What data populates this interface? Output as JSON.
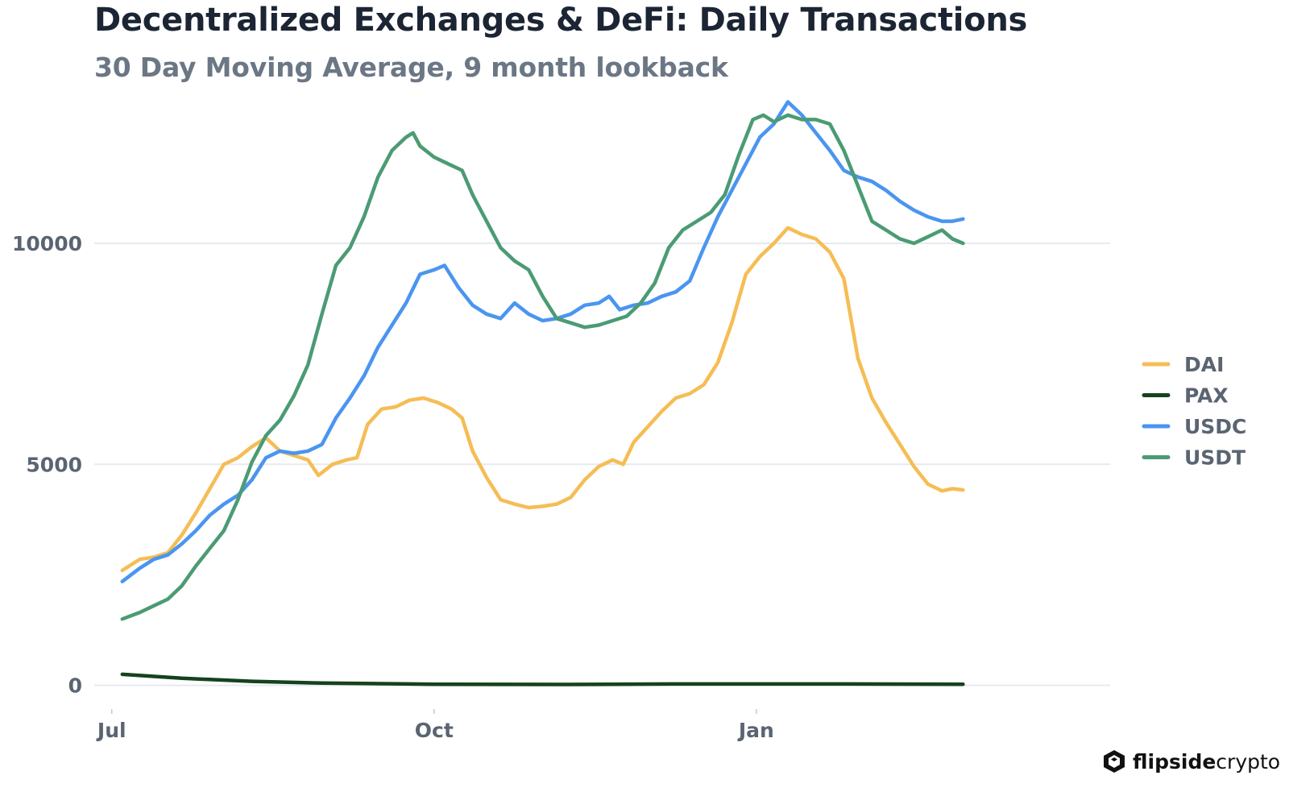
{
  "header": {
    "title": "Decentralized Exchanges & DeFi: Daily Transactions",
    "subtitle": "30 Day Moving Average, 9 month lookback"
  },
  "brand": {
    "name_bold": "flipside",
    "name_light": "crypto"
  },
  "chart_data": {
    "type": "line",
    "title": "Decentralized Exchanges & DeFi: Daily Transactions",
    "subtitle": "30 Day Moving Average, 9 month lookback",
    "xlabel": "",
    "ylabel": "",
    "x_unit": "days since Jul 1",
    "xlim": [
      -5,
      285
    ],
    "ylim": [
      -500,
      13500
    ],
    "x_ticks": [
      {
        "x": 0,
        "label": "Jul"
      },
      {
        "x": 92,
        "label": "Oct"
      },
      {
        "x": 184,
        "label": "Jan"
      }
    ],
    "y_ticks": [
      {
        "y": 0,
        "label": "0"
      },
      {
        "y": 5000,
        "label": "5000"
      },
      {
        "y": 10000,
        "label": "10000"
      }
    ],
    "grid": "horizontal",
    "legend_position": "right",
    "series": [
      {
        "name": "DAI",
        "color": "#f5bd55",
        "points": [
          [
            3,
            2600
          ],
          [
            8,
            2850
          ],
          [
            12,
            2900
          ],
          [
            16,
            3000
          ],
          [
            20,
            3400
          ],
          [
            24,
            3900
          ],
          [
            28,
            4450
          ],
          [
            32,
            5000
          ],
          [
            36,
            5150
          ],
          [
            40,
            5400
          ],
          [
            44,
            5600
          ],
          [
            48,
            5300
          ],
          [
            52,
            5200
          ],
          [
            56,
            5100
          ],
          [
            59,
            4750
          ],
          [
            63,
            5000
          ],
          [
            67,
            5100
          ],
          [
            70,
            5150
          ],
          [
            73,
            5900
          ],
          [
            77,
            6250
          ],
          [
            81,
            6300
          ],
          [
            85,
            6450
          ],
          [
            89,
            6500
          ],
          [
            93,
            6400
          ],
          [
            97,
            6250
          ],
          [
            100,
            6050
          ],
          [
            103,
            5300
          ],
          [
            107,
            4700
          ],
          [
            111,
            4200
          ],
          [
            115,
            4100
          ],
          [
            119,
            4020
          ],
          [
            123,
            4050
          ],
          [
            127,
            4100
          ],
          [
            131,
            4250
          ],
          [
            135,
            4650
          ],
          [
            139,
            4950
          ],
          [
            143,
            5100
          ],
          [
            146,
            5000
          ],
          [
            149,
            5500
          ],
          [
            153,
            5850
          ],
          [
            157,
            6200
          ],
          [
            161,
            6500
          ],
          [
            165,
            6600
          ],
          [
            169,
            6800
          ],
          [
            173,
            7300
          ],
          [
            177,
            8200
          ],
          [
            181,
            9300
          ],
          [
            185,
            9700
          ],
          [
            189,
            10000
          ],
          [
            193,
            10350
          ],
          [
            197,
            10200
          ],
          [
            201,
            10100
          ],
          [
            205,
            9800
          ],
          [
            209,
            9200
          ],
          [
            213,
            7400
          ],
          [
            217,
            6500
          ],
          [
            221,
            5950
          ],
          [
            225,
            5450
          ],
          [
            229,
            4950
          ],
          [
            233,
            4550
          ],
          [
            237,
            4400
          ],
          [
            240,
            4450
          ],
          [
            243,
            4420
          ]
        ]
      },
      {
        "name": "PAX",
        "color": "#15421b",
        "points": [
          [
            3,
            250
          ],
          [
            20,
            160
          ],
          [
            40,
            90
          ],
          [
            60,
            50
          ],
          [
            92,
            25
          ],
          [
            130,
            20
          ],
          [
            160,
            30
          ],
          [
            184,
            30
          ],
          [
            210,
            30
          ],
          [
            243,
            25
          ]
        ]
      },
      {
        "name": "USDC",
        "color": "#4a95f0",
        "points": [
          [
            3,
            2350
          ],
          [
            8,
            2650
          ],
          [
            12,
            2850
          ],
          [
            16,
            2950
          ],
          [
            20,
            3200
          ],
          [
            24,
            3500
          ],
          [
            28,
            3850
          ],
          [
            32,
            4100
          ],
          [
            36,
            4300
          ],
          [
            40,
            4650
          ],
          [
            44,
            5150
          ],
          [
            48,
            5300
          ],
          [
            52,
            5250
          ],
          [
            56,
            5300
          ],
          [
            60,
            5450
          ],
          [
            64,
            6050
          ],
          [
            68,
            6500
          ],
          [
            72,
            7000
          ],
          [
            76,
            7650
          ],
          [
            80,
            8150
          ],
          [
            84,
            8650
          ],
          [
            88,
            9300
          ],
          [
            92,
            9400
          ],
          [
            95,
            9500
          ],
          [
            99,
            9000
          ],
          [
            103,
            8600
          ],
          [
            107,
            8400
          ],
          [
            111,
            8300
          ],
          [
            115,
            8650
          ],
          [
            119,
            8400
          ],
          [
            123,
            8250
          ],
          [
            127,
            8300
          ],
          [
            131,
            8400
          ],
          [
            135,
            8600
          ],
          [
            139,
            8650
          ],
          [
            142,
            8800
          ],
          [
            145,
            8500
          ],
          [
            149,
            8600
          ],
          [
            153,
            8650
          ],
          [
            157,
            8800
          ],
          [
            161,
            8900
          ],
          [
            165,
            9150
          ],
          [
            169,
            9900
          ],
          [
            173,
            10600
          ],
          [
            177,
            11200
          ],
          [
            181,
            11800
          ],
          [
            185,
            12400
          ],
          [
            189,
            12700
          ],
          [
            193,
            13200
          ],
          [
            197,
            12900
          ],
          [
            201,
            12500
          ],
          [
            205,
            12100
          ],
          [
            209,
            11650
          ],
          [
            213,
            11500
          ],
          [
            217,
            11400
          ],
          [
            221,
            11200
          ],
          [
            225,
            10950
          ],
          [
            229,
            10750
          ],
          [
            233,
            10600
          ],
          [
            237,
            10500
          ],
          [
            240,
            10500
          ],
          [
            243,
            10550
          ]
        ]
      },
      {
        "name": "USDT",
        "color": "#4b9b74",
        "points": [
          [
            3,
            1500
          ],
          [
            8,
            1650
          ],
          [
            12,
            1800
          ],
          [
            16,
            1950
          ],
          [
            20,
            2250
          ],
          [
            24,
            2700
          ],
          [
            28,
            3100
          ],
          [
            32,
            3500
          ],
          [
            36,
            4200
          ],
          [
            40,
            5050
          ],
          [
            44,
            5650
          ],
          [
            48,
            6000
          ],
          [
            52,
            6550
          ],
          [
            56,
            7250
          ],
          [
            60,
            8400
          ],
          [
            64,
            9500
          ],
          [
            68,
            9900
          ],
          [
            72,
            10600
          ],
          [
            76,
            11500
          ],
          [
            80,
            12100
          ],
          [
            84,
            12400
          ],
          [
            86,
            12500
          ],
          [
            88,
            12200
          ],
          [
            92,
            11950
          ],
          [
            96,
            11800
          ],
          [
            100,
            11650
          ],
          [
            103,
            11100
          ],
          [
            107,
            10500
          ],
          [
            111,
            9900
          ],
          [
            115,
            9600
          ],
          [
            119,
            9400
          ],
          [
            123,
            8800
          ],
          [
            127,
            8300
          ],
          [
            131,
            8200
          ],
          [
            135,
            8100
          ],
          [
            139,
            8150
          ],
          [
            143,
            8250
          ],
          [
            147,
            8350
          ],
          [
            151,
            8650
          ],
          [
            155,
            9100
          ],
          [
            159,
            9900
          ],
          [
            163,
            10300
          ],
          [
            167,
            10500
          ],
          [
            171,
            10700
          ],
          [
            175,
            11100
          ],
          [
            179,
            12000
          ],
          [
            183,
            12800
          ],
          [
            186,
            12900
          ],
          [
            189,
            12750
          ],
          [
            193,
            12900
          ],
          [
            197,
            12800
          ],
          [
            201,
            12800
          ],
          [
            205,
            12700
          ],
          [
            209,
            12100
          ],
          [
            213,
            11300
          ],
          [
            217,
            10500
          ],
          [
            221,
            10300
          ],
          [
            225,
            10100
          ],
          [
            229,
            10000
          ],
          [
            233,
            10150
          ],
          [
            237,
            10300
          ],
          [
            240,
            10100
          ],
          [
            243,
            10000
          ]
        ]
      }
    ]
  }
}
